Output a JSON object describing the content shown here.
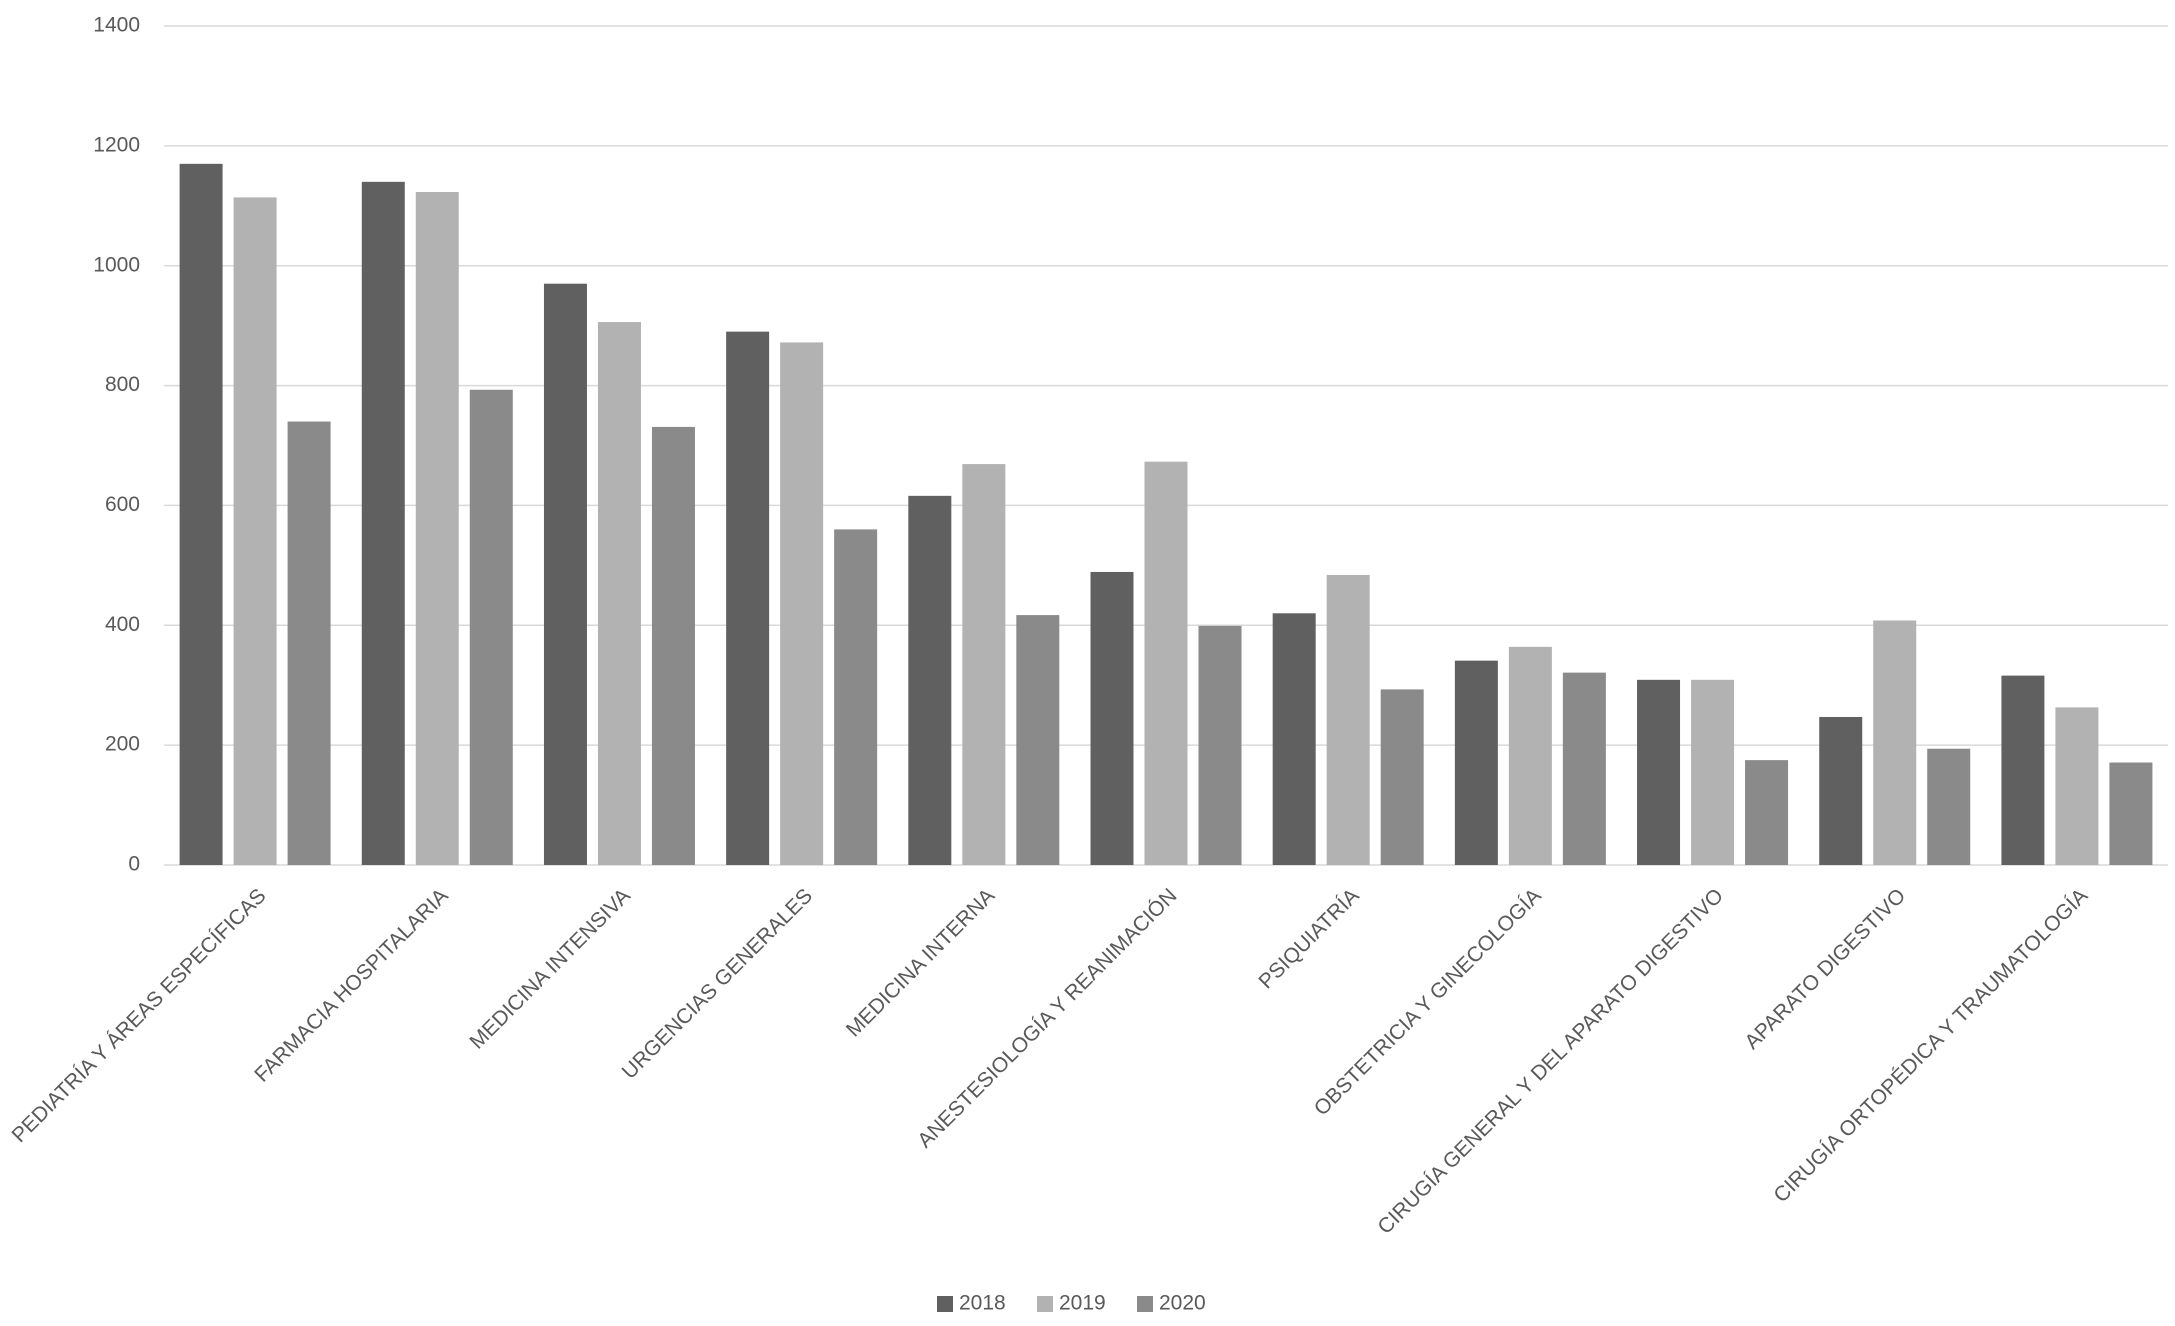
{
  "chart_data": {
    "type": "bar",
    "categories": [
      "PEDIATRÍA Y ÁREAS ESPECÍFICAS",
      "FARMACIA HOSPITALARIA",
      "MEDICINA INTENSIVA",
      "URGENCIAS GENERALES",
      "MEDICINA INTERNA",
      "ANESTESIOLOGÍA Y REANIMACIÓN",
      "PSIQUIATRÍA",
      "OBSTETRICIA Y GINECOLOGÍA",
      "CIRUGÍA GENERAL Y DEL APARATO DIGESTIVO",
      "APARATO DIGESTIVO",
      "CIRUGÍA ORTOPÉDICA Y TRAUMATOLOGÍA"
    ],
    "series": [
      {
        "name": "2018",
        "color": "#606060",
        "values": [
          1170,
          1140,
          970,
          890,
          616,
          489,
          420,
          341,
          309,
          247,
          316
        ]
      },
      {
        "name": "2019",
        "color": "#b2b2b2",
        "values": [
          1114,
          1123,
          906,
          872,
          669,
          673,
          484,
          364,
          309,
          408,
          263
        ]
      },
      {
        "name": "2020",
        "color": "#8a8a8a",
        "values": [
          740,
          793,
          731,
          560,
          417,
          399,
          293,
          321,
          175,
          194,
          171
        ]
      }
    ],
    "ylim": [
      0,
      1400
    ],
    "yticks": [
      0,
      200,
      400,
      600,
      800,
      1000,
      1200,
      1400
    ],
    "grid": true,
    "legend": "bottom"
  }
}
